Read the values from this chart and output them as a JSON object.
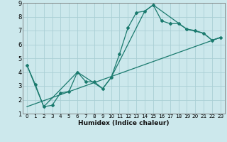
{
  "xlabel": "Humidex (Indice chaleur)",
  "background_color": "#cce8ec",
  "grid_color": "#aacfd5",
  "line_color": "#1a7a6e",
  "xlim": [
    -0.5,
    23.5
  ],
  "ylim": [
    1,
    9
  ],
  "xtick_labels": [
    "0",
    "1",
    "2",
    "3",
    "4",
    "5",
    "6",
    "7",
    "8",
    "9",
    "10",
    "11",
    "12",
    "13",
    "14",
    "15",
    "16",
    "17",
    "18",
    "19",
    "20",
    "21",
    "22",
    "23"
  ],
  "xtick_vals": [
    0,
    1,
    2,
    3,
    4,
    5,
    6,
    7,
    8,
    9,
    10,
    11,
    12,
    13,
    14,
    15,
    16,
    17,
    18,
    19,
    20,
    21,
    22,
    23
  ],
  "ytick_vals": [
    1,
    2,
    3,
    4,
    5,
    6,
    7,
    8,
    9
  ],
  "series1_x": [
    0,
    1,
    2,
    3,
    4,
    5,
    6,
    7,
    8,
    9,
    10,
    11,
    12,
    13,
    14,
    15,
    16,
    17,
    18,
    19,
    20,
    21,
    22,
    23
  ],
  "series1_y": [
    4.5,
    3.1,
    1.5,
    1.6,
    2.5,
    2.6,
    4.0,
    3.3,
    3.3,
    2.8,
    3.6,
    5.3,
    7.2,
    8.3,
    8.4,
    8.85,
    7.7,
    7.5,
    7.5,
    7.1,
    7.0,
    6.8,
    6.3,
    6.5
  ],
  "series2_x": [
    0,
    2,
    6,
    9,
    10,
    14,
    15,
    19,
    21,
    22,
    23
  ],
  "series2_y": [
    4.5,
    1.5,
    4.0,
    2.8,
    3.6,
    8.4,
    8.85,
    7.1,
    6.8,
    6.3,
    6.5
  ],
  "series3_x": [
    0,
    23
  ],
  "series3_y": [
    1.5,
    6.5
  ]
}
